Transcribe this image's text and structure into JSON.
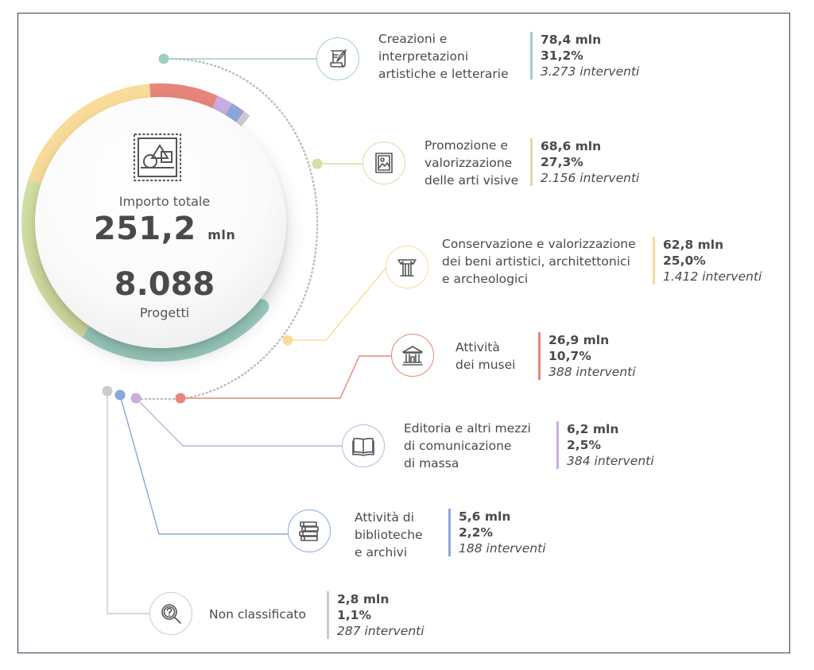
{
  "colors": {
    "teal": "#9ecfc3",
    "green": "#d4e0a4",
    "yellow": "#f9dc9a",
    "red": "#e8857a",
    "purple": "#c8aede",
    "blue": "#8aa7d8",
    "gray": "#cbcbcb"
  },
  "center": {
    "icon": "stamp-shapes-icon",
    "total_label": "Importo totale",
    "total_value": "251,2",
    "total_unit": "mln",
    "projects_value": "8.088",
    "projects_label": "Progetti"
  },
  "chart_data": {
    "type": "pie",
    "slices": [
      {
        "name": "Creazioni e interpretazioni artistiche e letterarie",
        "amount": "78,4 mln",
        "value": 78.4,
        "percent": "31,2%",
        "interventions": "3.273 interventi",
        "color": "#9ecfc3",
        "icon": "scroll-quill-icon"
      },
      {
        "name": "Promozione e valorizzazione delle arti visive",
        "amount": "68,6 mln",
        "value": 68.6,
        "percent": "27,3%",
        "interventions": "2.156 interventi",
        "color": "#d4e0a4",
        "icon": "framed-picture-icon"
      },
      {
        "name": "Conservazione e valorizzazione dei beni artistici, architettonici e archeologici",
        "amount": "62,8 mln",
        "value": 62.8,
        "percent": "25,0%",
        "interventions": "1.412 interventi",
        "color": "#f9dc9a",
        "icon": "column-capital-icon"
      },
      {
        "name": "Attività dei musei",
        "amount": "26,9 mln",
        "value": 26.9,
        "percent": "10,7%",
        "interventions": "388 interventi",
        "color": "#e8857a",
        "icon": "museum-building-icon"
      },
      {
        "name": "Editoria e altri mezzi di comunicazione di massa",
        "amount": "6,2 mln",
        "value": 6.2,
        "percent": "2,5%",
        "interventions": "384 interventi",
        "color": "#c8aede",
        "icon": "open-book-icon"
      },
      {
        "name": "Attività di biblioteche e archivi",
        "amount": "5,6 mln",
        "value": 5.6,
        "percent": "2,2%",
        "interventions": "188 interventi",
        "color": "#8aa7d8",
        "icon": "stacked-books-icon"
      },
      {
        "name": "Non classificato",
        "amount": "2,8 mln",
        "value": 2.8,
        "percent": "1,1%",
        "interventions": "287 interventi",
        "color": "#cbcbcb",
        "icon": "magnifier-question-icon"
      }
    ]
  },
  "labels": [
    {
      "lines": [
        "Creazioni e",
        "interpretazioni",
        "artistiche e letterarie"
      ]
    },
    {
      "lines": [
        "Promozione e",
        "valorizzazione",
        "delle arti visive"
      ]
    },
    {
      "lines": [
        "Conservazione e valorizzazione",
        "dei beni artistici, architettonici",
        "e archeologici"
      ]
    },
    {
      "lines": [
        "Attività",
        "dei musei"
      ]
    },
    {
      "lines": [
        "Editoria e altri mezzi",
        "di comunicazione",
        "di massa"
      ]
    },
    {
      "lines": [
        "Attività di",
        "biblioteche",
        "e archivi"
      ]
    },
    {
      "lines": [
        "Non classificato"
      ]
    }
  ]
}
